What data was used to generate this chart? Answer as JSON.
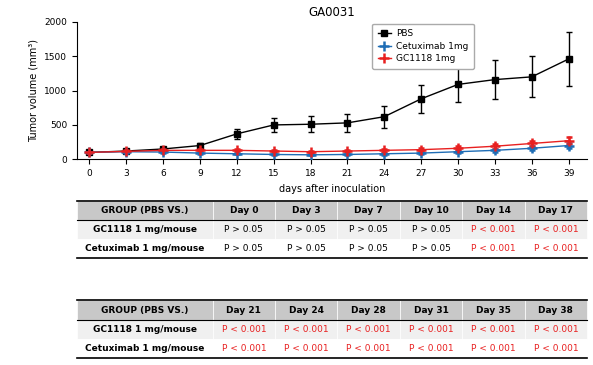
{
  "title": "GA0031",
  "xlabel": "days after inoculation",
  "ylabel": "Tumor volume (mm³)",
  "x_ticks": [
    0,
    3,
    6,
    9,
    12,
    15,
    18,
    21,
    24,
    27,
    30,
    33,
    36,
    39
  ],
  "ylim": [
    0,
    2000
  ],
  "yticks": [
    0,
    500,
    1000,
    1500,
    2000
  ],
  "pbs": {
    "x": [
      0,
      3,
      6,
      9,
      12,
      15,
      18,
      21,
      24,
      27,
      30,
      33,
      36,
      39
    ],
    "y": [
      100,
      120,
      150,
      200,
      370,
      500,
      510,
      530,
      620,
      880,
      1090,
      1160,
      1200,
      1460
    ],
    "err": [
      10,
      15,
      25,
      40,
      70,
      100,
      120,
      130,
      160,
      200,
      260,
      280,
      300,
      400
    ],
    "color": "#000000",
    "label": "PBS",
    "marker": "s"
  },
  "cetuximab": {
    "x": [
      0,
      3,
      6,
      9,
      12,
      15,
      18,
      21,
      24,
      27,
      30,
      33,
      36,
      39
    ],
    "y": [
      100,
      110,
      105,
      90,
      80,
      70,
      65,
      70,
      80,
      90,
      110,
      130,
      160,
      200
    ],
    "err": [
      10,
      15,
      10,
      10,
      10,
      10,
      10,
      10,
      15,
      20,
      20,
      25,
      30,
      35
    ],
    "color": "#1f6db5",
    "label": "Cetuximab 1mg",
    "marker": "P"
  },
  "gc1118": {
    "x": [
      0,
      3,
      6,
      9,
      12,
      15,
      18,
      21,
      24,
      27,
      30,
      33,
      36,
      39
    ],
    "y": [
      100,
      115,
      130,
      130,
      130,
      120,
      110,
      120,
      130,
      140,
      160,
      190,
      230,
      270
    ],
    "err": [
      10,
      15,
      15,
      15,
      15,
      15,
      15,
      20,
      20,
      25,
      30,
      35,
      40,
      50
    ],
    "color": "#e82020",
    "label": "GC1118 1mg",
    "marker": "P"
  },
  "table1_header": [
    "GROUP (PBS VS.)",
    "Day 0",
    "Day 3",
    "Day 7",
    "Day 10",
    "Day 14",
    "Day 17"
  ],
  "table1_rows": [
    [
      "GC1118 1 mg/mouse",
      "P > 0.05",
      "P > 0.05",
      "P > 0.05",
      "P > 0.05",
      "P < 0.001",
      "P < 0.001"
    ],
    [
      "Cetuximab 1 mg/mouse",
      "P > 0.05",
      "P > 0.05",
      "P > 0.05",
      "P > 0.05",
      "P < 0.001",
      "P < 0.001"
    ]
  ],
  "table2_header": [
    "GROUP (PBS VS.)",
    "Day 21",
    "Day 24",
    "Day 28",
    "Day 31",
    "Day 35",
    "Day 38"
  ],
  "table2_rows": [
    [
      "GC1118 1 mg/mouse",
      "P < 0.001",
      "P < 0.001",
      "P < 0.001",
      "P < 0.001",
      "P < 0.001",
      "P < 0.001"
    ],
    [
      "Cetuximab 1 mg/mouse",
      "P < 0.001",
      "P < 0.001",
      "P < 0.001",
      "P < 0.001",
      "P < 0.001",
      "P < 0.001"
    ]
  ],
  "sig_color": "#e82020",
  "nonsig_color": "#000000",
  "header_bg": "#c8c8c8",
  "row_bg_even": "#f0f0f0",
  "row_bg_odd": "#ffffff"
}
